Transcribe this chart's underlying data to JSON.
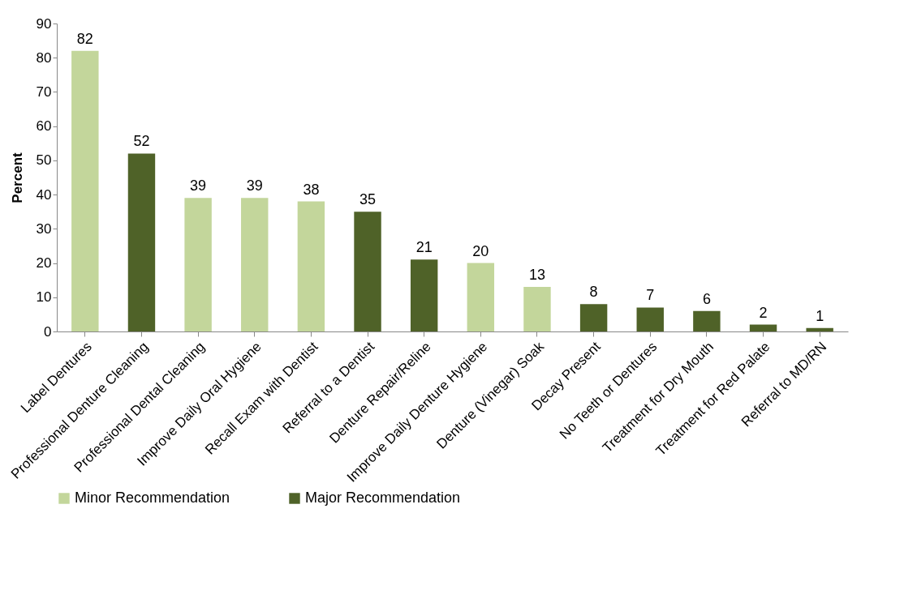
{
  "chart_data": {
    "type": "bar",
    "ylabel": "Percent",
    "categories": [
      "Label Dentures",
      "Professional Denture Cleaning",
      "Professional Dental Cleaning",
      "Improve Daily Oral Hygiene",
      "Recall Exam with Dentist",
      "Referral to a Dentist",
      "Denture Repair/Reline",
      "Improve Daily Denture Hygiene",
      "Denture (Vinegar) Soak",
      "Decay Present",
      "No Teeth or Dentures",
      "Treatment for Dry Mouth",
      "Treatment for Red Palate",
      "Referral to MD/RN"
    ],
    "series": [
      {
        "name": "Minor Recommendation",
        "color": "#c3d69b",
        "values": [
          82,
          null,
          39,
          39,
          38,
          null,
          null,
          20,
          13,
          null,
          null,
          null,
          null,
          null
        ]
      },
      {
        "name": "Major Recommendation",
        "color": "#4f6228",
        "values": [
          null,
          52,
          null,
          null,
          null,
          35,
          21,
          null,
          null,
          8,
          7,
          6,
          2,
          1
        ]
      }
    ],
    "ylim": [
      0,
      90
    ],
    "yticks": [
      0,
      10,
      20,
      30,
      40,
      50,
      60,
      70,
      80,
      90
    ],
    "data_labels": true,
    "legend": "bottom"
  }
}
